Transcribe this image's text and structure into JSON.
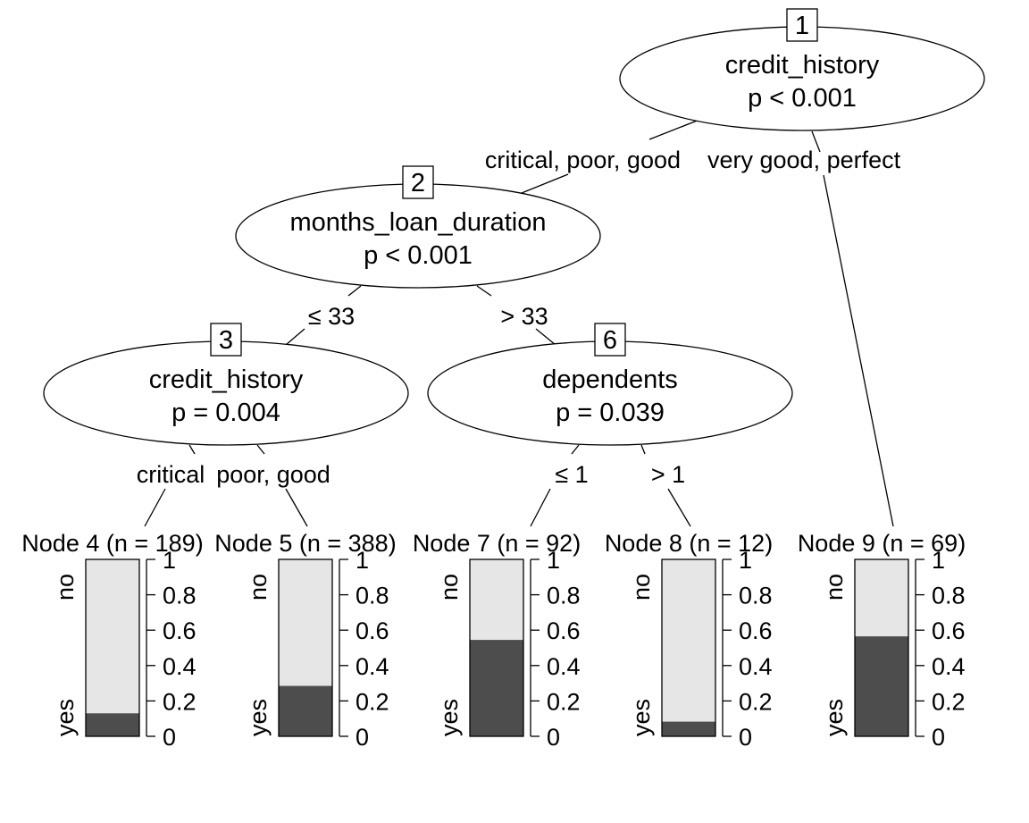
{
  "inner_nodes": [
    {
      "id": "1",
      "variable": "credit_history",
      "p": "p < 0.001"
    },
    {
      "id": "2",
      "variable": "months_loan_duration",
      "p": "p < 0.001"
    },
    {
      "id": "3",
      "variable": "credit_history",
      "p": "p = 0.004"
    },
    {
      "id": "6",
      "variable": "dependents",
      "p": "p = 0.039"
    }
  ],
  "edge_labels": [
    {
      "from": "1",
      "to": "2",
      "text": "critical, poor, good"
    },
    {
      "from": "1",
      "to": "9",
      "text": "very good, perfect"
    },
    {
      "from": "2",
      "to": "3",
      "text": "≤ 33"
    },
    {
      "from": "2",
      "to": "6",
      "text": "> 33"
    },
    {
      "from": "3",
      "to": "4",
      "text": "critical"
    },
    {
      "from": "3",
      "to": "5",
      "text": "poor, good"
    },
    {
      "from": "6",
      "to": "7",
      "text": "≤ 1"
    },
    {
      "from": "6",
      "to": "8",
      "text": "> 1"
    }
  ],
  "terminal_nodes": [
    {
      "id": "4",
      "label": "Node 4 (n = 189)",
      "yes": 0.13
    },
    {
      "id": "5",
      "label": "Node 5 (n = 388)",
      "yes": 0.285
    },
    {
      "id": "7",
      "label": "Node 7 (n = 92)",
      "yes": 0.545
    },
    {
      "id": "8",
      "label": "Node 8 (n = 12)",
      "yes": 0.083
    },
    {
      "id": "9",
      "label": "Node 9 (n = 69)",
      "yes": 0.565
    }
  ],
  "bar_axis": {
    "ticks": [
      "0",
      "0.2",
      "0.4",
      "0.6",
      "0.8",
      "1"
    ],
    "top_class": "no",
    "bottom_class": "yes"
  },
  "colors": {
    "no_fill": "#e6e6e6",
    "yes_fill": "#4d4d4d"
  }
}
